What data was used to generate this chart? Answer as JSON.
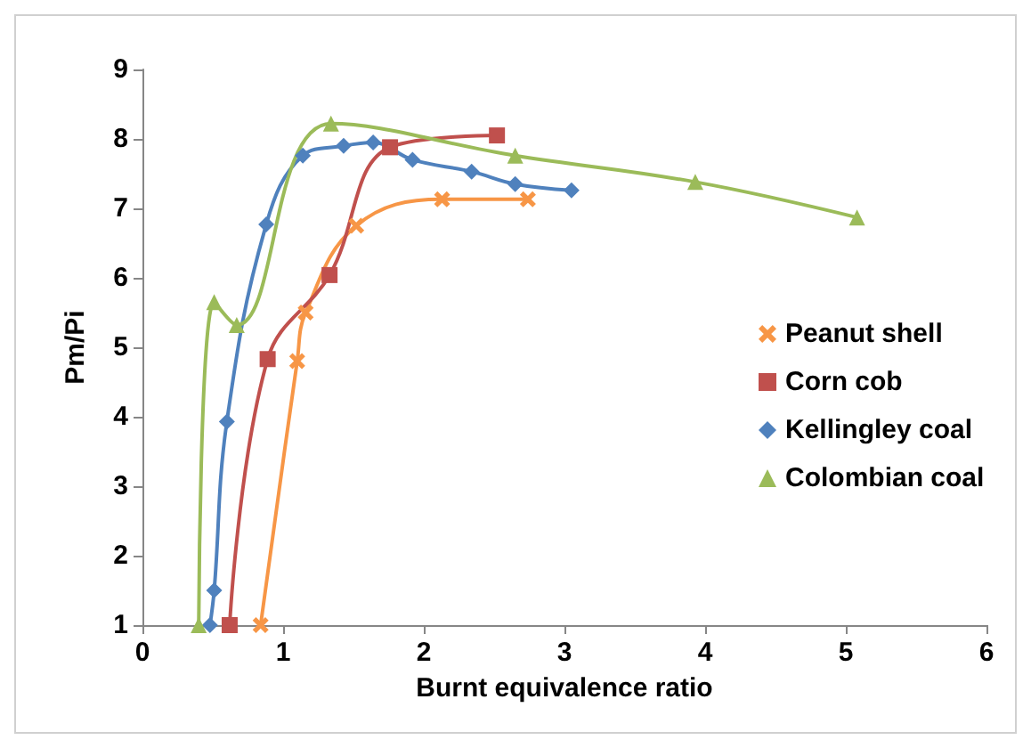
{
  "chart_data": {
    "type": "line",
    "xlabel": "Burnt equivalence ratio",
    "ylabel": "Pm/Pi",
    "xlim": [
      0,
      6
    ],
    "xticks": [
      0,
      1,
      2,
      3,
      4,
      5,
      6
    ],
    "ylim": [
      1,
      9
    ],
    "yticks": [
      1,
      2,
      3,
      4,
      5,
      6,
      7,
      8,
      9
    ],
    "grid": false,
    "legend": "right",
    "line_style": "solid",
    "series": [
      {
        "name": "Peanut shell",
        "color": "#f79646",
        "marker": "cross",
        "x": [
          0.84,
          1.1,
          1.16,
          1.52,
          2.13,
          2.74
        ],
        "values": [
          1,
          4.8,
          5.5,
          6.75,
          7.13,
          7.13
        ]
      },
      {
        "name": "Corn cob",
        "color": "#c0504d",
        "marker": "square",
        "x": [
          0.62,
          0.89,
          1.33,
          1.76,
          2.52
        ],
        "values": [
          1,
          4.83,
          6.04,
          7.88,
          8.05
        ]
      },
      {
        "name": "Kellingley coal",
        "color": "#4f81bd",
        "marker": "diamond",
        "x": [
          0.48,
          0.51,
          0.6,
          0.88,
          1.14,
          1.43,
          1.64,
          1.92,
          2.34,
          2.65,
          3.05
        ],
        "values": [
          1,
          1.5,
          3.93,
          6.77,
          7.76,
          7.9,
          7.95,
          7.7,
          7.53,
          7.35,
          7.26
        ]
      },
      {
        "name": "Colombian coal",
        "color": "#9bbb59",
        "marker": "triangle",
        "x": [
          0.4,
          0.51,
          0.67,
          1.34,
          2.65,
          3.93,
          5.08
        ],
        "values": [
          1,
          5.65,
          5.32,
          8.22,
          7.76,
          7.38,
          6.87
        ]
      }
    ]
  }
}
